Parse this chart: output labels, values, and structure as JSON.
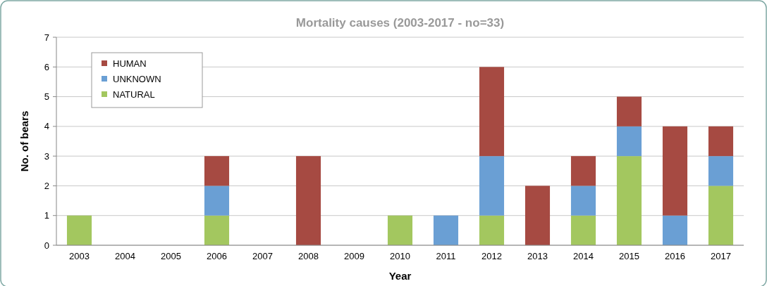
{
  "chart_data": {
    "type": "bar",
    "title": "Mortality causes (2003-2017 - no=33)",
    "xlabel": "Year",
    "ylabel": "No. of bears",
    "categories": [
      "2003",
      "2004",
      "2005",
      "2006",
      "2007",
      "2008",
      "2009",
      "2010",
      "2011",
      "2012",
      "2013",
      "2014",
      "2015",
      "2016",
      "2017"
    ],
    "series": [
      {
        "name": "NATURAL",
        "color": "#a3c75f",
        "values": [
          1,
          0,
          0,
          1,
          0,
          0,
          0,
          1,
          0,
          1,
          0,
          1,
          3,
          0,
          2
        ]
      },
      {
        "name": "UNKNOWN",
        "color": "#6a9fd4",
        "values": [
          0,
          0,
          0,
          1,
          0,
          0,
          0,
          0,
          1,
          2,
          0,
          1,
          1,
          1,
          1
        ]
      },
      {
        "name": "HUMAN",
        "color": "#a64a42",
        "values": [
          0,
          0,
          0,
          1,
          0,
          3,
          0,
          0,
          0,
          3,
          2,
          1,
          1,
          3,
          1
        ]
      }
    ],
    "stacked": true,
    "ylim": [
      0,
      7
    ],
    "yticks": [
      0,
      1,
      2,
      3,
      4,
      5,
      6,
      7
    ],
    "grid": "y",
    "legend": "top left"
  }
}
